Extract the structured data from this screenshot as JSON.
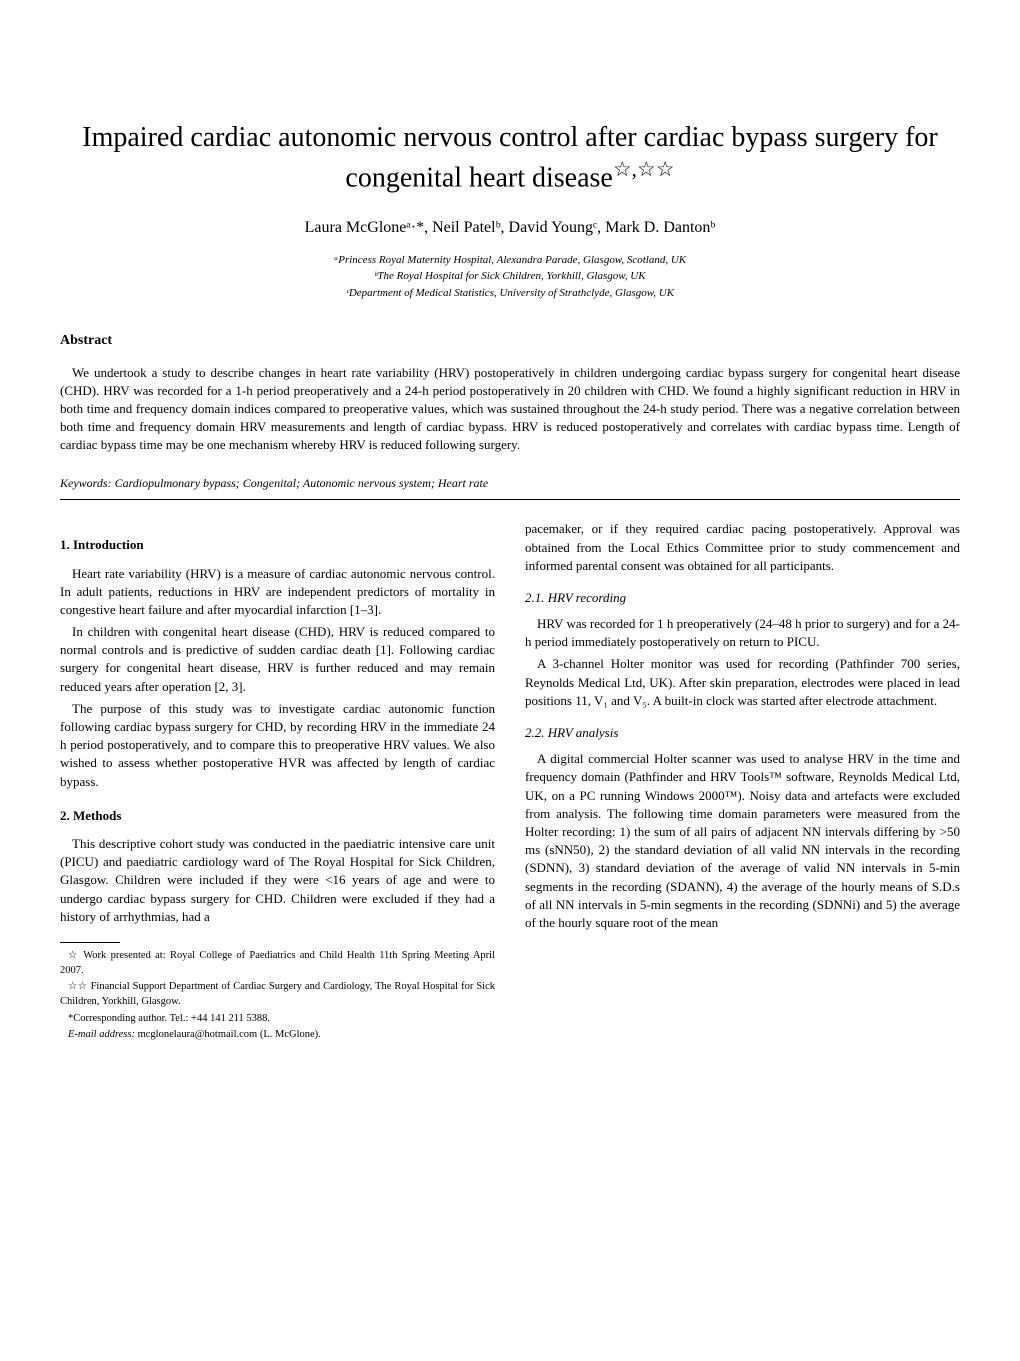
{
  "title": "Impaired cardiac autonomic nervous control after cardiac bypass surgery for congenital heart disease",
  "title_markers": "☆,☆☆",
  "authors": "Laura McGloneᵃ·*, Neil Patelᵇ, David Youngᶜ, Mark D. Dantonᵇ",
  "affiliations": {
    "a": "ᵃPrincess Royal Maternity Hospital, Alexandra Parade, Glasgow, Scotland, UK",
    "b": "ᵇThe Royal Hospital for Sick Children, Yorkhill, Glasgow, UK",
    "c": "ᶜDepartment of Medical Statistics, University of Strathclyde, Glasgow, UK"
  },
  "abstract": {
    "heading": "Abstract",
    "text": "We undertook a study to describe changes in heart rate variability (HRV) postoperatively in children undergoing cardiac bypass surgery for congenital heart disease (CHD). HRV was recorded for a 1-h period preoperatively and a 24-h period postoperatively in 20 children with CHD. We found a highly significant reduction in HRV in both time and frequency domain indices compared to preoperative values, which was sustained throughout the 24-h study period. There was a negative correlation between both time and frequency domain HRV measurements and length of cardiac bypass. HRV is reduced postoperatively and correlates with cardiac bypass time. Length of cardiac bypass time may be one mechanism whereby HRV is reduced following surgery."
  },
  "keywords": {
    "label": "Keywords:",
    "text": " Cardiopulmonary bypass; Congenital; Autonomic nervous system; Heart rate"
  },
  "sections": {
    "intro": {
      "heading": "1. Introduction",
      "p1": "Heart rate variability (HRV) is a measure of cardiac autonomic nervous control. In adult patients, reductions in HRV are independent predictors of mortality in congestive heart failure and after myocardial infarction [1–3].",
      "p2": "In children with congenital heart disease (CHD), HRV is reduced compared to normal controls and is predictive of sudden cardiac death [1]. Following cardiac surgery for congenital heart disease, HRV is further reduced and may remain reduced years after operation [2, 3].",
      "p3": "The purpose of this study was to investigate cardiac autonomic function following cardiac bypass surgery for CHD, by recording HRV in the immediate 24 h period postoperatively, and to compare this to preoperative HRV values. We also wished to assess whether postoperative HVR was affected by length of cardiac bypass."
    },
    "methods": {
      "heading": "2. Methods",
      "p1": "This descriptive cohort study was conducted in the paediatric intensive care unit (PICU) and paediatric cardiology ward of The Royal Hospital for Sick Children, Glasgow. Children were included if they were <16 years of age and were to undergo cardiac bypass surgery for CHD. Children were excluded if they had a history of arrhythmias, had a",
      "p1_cont": "pacemaker, or if they required cardiac pacing postoperatively. Approval was obtained from the Local Ethics Committee prior to study commencement and informed parental consent was obtained for all participants."
    },
    "hrv_recording": {
      "heading": "2.1. HRV recording",
      "p1": "HRV was recorded for 1 h preoperatively (24–48 h prior to surgery) and for a 24-h period immediately postoperatively on return to PICU.",
      "p2": "A 3-channel Holter monitor was used for recording (Pathfinder 700 series, Reynolds Medical Ltd, UK). After skin preparation, electrodes were placed in lead positions 11, V₁ and V₅. A built-in clock was started after electrode attachment."
    },
    "hrv_analysis": {
      "heading": "2.2. HRV analysis",
      "p1": "A digital commercial Holter scanner was used to analyse HRV in the time and frequency domain (Pathfinder and HRV Tools™ software, Reynolds Medical Ltd, UK, on a PC running Windows 2000™). Noisy data and artefacts were excluded from analysis. The following time domain parameters were measured from the Holter recording: 1) the sum of all pairs of adjacent NN intervals differing by >50 ms (sNN50), 2) the standard deviation of all valid NN intervals in the recording (SDNN), 3) standard deviation of the average of valid NN intervals in 5-min segments in the recording (SDANN), 4) the average of the hourly means of S.D.s of all NN intervals in 5-min segments in the recording (SDNNi) and 5) the average of the hourly square root of the mean"
    }
  },
  "footnotes": {
    "f1": "☆ Work presented at: Royal College of Paediatrics and Child Health 11th Spring Meeting April 2007.",
    "f2": "☆☆ Financial Support Department of Cardiac Surgery and Cardiology, The Royal Hospital for Sick Children, Yorkhill, Glasgow.",
    "f3": "*Corresponding author. Tel.: +44 141 211 5388.",
    "f4_label": "E-mail address:",
    "f4_value": " mcglonelaura@hotmail.com (L. McGlone)."
  }
}
